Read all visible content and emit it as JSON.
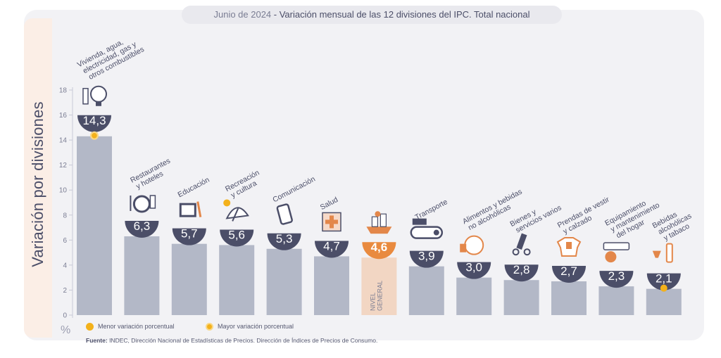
{
  "header": {
    "date": "Junio de 2024",
    "title": " - Variación mensual de las 12 divisiones del IPC. Total nacional"
  },
  "axis": {
    "ylabel": "Variación por divisiones",
    "unit": "%"
  },
  "legend": {
    "min_label": "Menor variación porcentual",
    "max_label": "Mayor variación porcentual"
  },
  "source": {
    "label": "Fuente:",
    "text": " INDEC, Dirección Nacional de Estadísticas de Precios. Dirección de Índices de Precios de Consumo."
  },
  "chart_data": {
    "type": "bar",
    "title": "Junio de 2024 - Variación mensual de las 12 divisiones del IPC. Total nacional",
    "ylabel": "Variación por divisiones",
    "unit": "%",
    "ylim": [
      0,
      18
    ],
    "yticks": [
      0,
      2,
      4,
      6,
      8,
      10,
      12,
      14,
      16,
      18
    ],
    "categories": [
      {
        "lines": [
          "Vivienda, agua,",
          "electricidad, gas y",
          "otros combustibles"
        ],
        "value": 14.3,
        "label": "14,3",
        "marker": "max"
      },
      {
        "lines": [
          "Restaurantes",
          "y hoteles"
        ],
        "value": 6.3,
        "label": "6,3"
      },
      {
        "lines": [
          "Educación"
        ],
        "value": 5.7,
        "label": "5,7"
      },
      {
        "lines": [
          "Recreación",
          "y cultura"
        ],
        "value": 5.6,
        "label": "5,6"
      },
      {
        "lines": [
          "Comunicación"
        ],
        "value": 5.3,
        "label": "5,3"
      },
      {
        "lines": [
          "Salud"
        ],
        "value": 4.7,
        "label": "4,7"
      },
      {
        "lines": [
          "NIVEL",
          "GENERAL"
        ],
        "value": 4.6,
        "label": "4,6",
        "highlight": true
      },
      {
        "lines": [
          "Transporte"
        ],
        "value": 3.9,
        "label": "3,9"
      },
      {
        "lines": [
          "Alimentos y bebidas",
          "no alcohólicas"
        ],
        "value": 3.0,
        "label": "3,0"
      },
      {
        "lines": [
          "Bienes y",
          "servicios varios"
        ],
        "value": 2.8,
        "label": "2,8"
      },
      {
        "lines": [
          "Prendas de vestir",
          "y calzado"
        ],
        "value": 2.7,
        "label": "2,7"
      },
      {
        "lines": [
          "Equipamiento",
          "y mantenimiento",
          "del hogar"
        ],
        "value": 2.3,
        "label": "2,3"
      },
      {
        "lines": [
          "Bebidas",
          "alcohólicas",
          "y tabaco"
        ],
        "value": 2.1,
        "label": "2,1",
        "marker": "min"
      }
    ],
    "icons": [
      "house-utilities-icon",
      "restaurant-icon",
      "book-icon",
      "beach-umbrella-icon",
      "phone-icon",
      "health-cross-icon",
      "shopping-basket-icon",
      "bus-icon",
      "food-icon",
      "scissors-comb-icon",
      "clothing-icon",
      "appliance-icon",
      "wine-bottle-icon"
    ],
    "colors": {
      "bar": "#b3b8c7",
      "bar_general": "#f2d6c3",
      "bubble": "#4b4e68",
      "bubble_general": "#e98a3f",
      "marker": "#f3b11b",
      "icon_accent": "#e3874a"
    }
  }
}
